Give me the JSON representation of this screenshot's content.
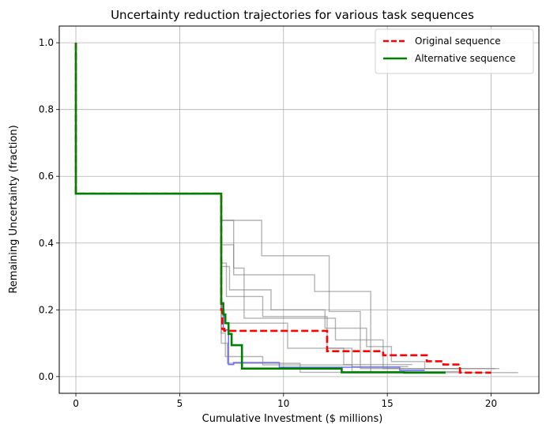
{
  "chart_data": {
    "type": "line",
    "title": "Uncertainty reduction trajectories for various task sequences",
    "xlabel": "Cumulative Investment ($ millions)",
    "ylabel": "Remaining Uncertainty (fraction)",
    "xlim": [
      -0.8,
      22.3
    ],
    "ylim": [
      -0.05,
      1.05
    ],
    "x_ticks": [
      0,
      5,
      10,
      15,
      20
    ],
    "y_ticks": [
      0.0,
      0.2,
      0.4,
      0.6,
      0.8,
      1.0
    ],
    "x_tick_labels": [
      "0",
      "5",
      "10",
      "15",
      "20"
    ],
    "y_tick_labels": [
      "0.0",
      "0.2",
      "0.4",
      "0.6",
      "0.8",
      "1.0"
    ],
    "grid": true,
    "legend_position": "top-right",
    "colors": {
      "highlight": "#ff0000",
      "alternative": "#008000",
      "blue": "#0000ff",
      "background": "#808080"
    },
    "series": [
      {
        "name": "Original sequence",
        "legend": true,
        "color": "#ff0000",
        "style": "dashed",
        "width": 2.6,
        "opacity": 1,
        "x": [
          0,
          0,
          7.0,
          7.0,
          7.05,
          7.05,
          7.15,
          7.15,
          12.1,
          12.1,
          14.8,
          14.8,
          16.9,
          16.9,
          17.7,
          17.7,
          18.5,
          18.5,
          20.0
        ],
        "y": [
          1.0,
          0.548,
          0.548,
          0.2,
          0.2,
          0.143,
          0.143,
          0.137,
          0.137,
          0.076,
          0.076,
          0.064,
          0.064,
          0.046,
          0.046,
          0.036,
          0.036,
          0.012,
          0.012
        ]
      },
      {
        "name": "Alternative sequence",
        "legend": true,
        "color": "#008000",
        "style": "solid",
        "width": 2.6,
        "opacity": 1,
        "x": [
          0,
          0,
          7.0,
          7.0,
          7.1,
          7.1,
          7.2,
          7.2,
          7.35,
          7.35,
          7.5,
          7.5,
          8.0,
          8.0,
          12.8,
          12.8,
          15.8,
          15.8,
          17.8
        ],
        "y": [
          1.0,
          0.548,
          0.548,
          0.22,
          0.22,
          0.186,
          0.186,
          0.16,
          0.16,
          0.128,
          0.128,
          0.094,
          0.094,
          0.024,
          0.024,
          0.013,
          0.013,
          0.012,
          0.012
        ]
      },
      {
        "name": "",
        "legend": false,
        "color": "#0000ff",
        "style": "solid",
        "width": 1.6,
        "opacity": 0.55,
        "x": [
          7.0,
          7.0,
          7.1,
          7.1,
          7.35,
          7.35,
          7.6,
          7.6,
          9.8,
          9.8,
          15.6,
          15.6,
          16.8
        ],
        "y": [
          0.548,
          0.2,
          0.2,
          0.14,
          0.14,
          0.036,
          0.036,
          0.042,
          0.042,
          0.028,
          0.028,
          0.019,
          0.019
        ]
      },
      {
        "name": "",
        "legend": false,
        "color": "#808080",
        "style": "solid",
        "width": 1.4,
        "opacity": 0.6,
        "x": [
          7.0,
          7.0,
          8.95,
          8.95,
          12.2,
          12.2,
          13.7,
          13.7,
          20.4
        ],
        "y": [
          0.548,
          0.468,
          0.468,
          0.362,
          0.362,
          0.195,
          0.195,
          0.024,
          0.024
        ]
      },
      {
        "name": "",
        "legend": false,
        "color": "#808080",
        "style": "solid",
        "width": 1.4,
        "opacity": 0.6,
        "x": [
          7.0,
          7.0,
          7.6,
          7.6,
          11.5,
          11.5,
          14.2,
          14.2,
          21.3
        ],
        "y": [
          0.548,
          0.468,
          0.468,
          0.305,
          0.305,
          0.255,
          0.255,
          0.012,
          0.012
        ]
      },
      {
        "name": "",
        "legend": false,
        "color": "#808080",
        "style": "solid",
        "width": 1.4,
        "opacity": 0.6,
        "x": [
          7.0,
          7.0,
          7.6,
          7.6,
          8.1,
          8.1,
          12.5,
          12.5,
          14.8,
          14.8,
          20.2
        ],
        "y": [
          0.548,
          0.395,
          0.395,
          0.325,
          0.325,
          0.175,
          0.175,
          0.11,
          0.11,
          0.024,
          0.024
        ]
      },
      {
        "name": "",
        "legend": false,
        "color": "#808080",
        "style": "solid",
        "width": 1.4,
        "opacity": 0.6,
        "x": [
          7.0,
          7.0,
          7.4,
          7.4,
          9.4,
          9.4,
          12.0,
          12.0,
          14.0,
          14.0,
          15.2,
          15.2,
          16.8,
          16.8,
          18.5
        ],
        "y": [
          0.548,
          0.33,
          0.33,
          0.26,
          0.26,
          0.2,
          0.2,
          0.145,
          0.145,
          0.09,
          0.09,
          0.045,
          0.045,
          0.024,
          0.024
        ]
      },
      {
        "name": "",
        "legend": false,
        "color": "#808080",
        "style": "solid",
        "width": 1.4,
        "opacity": 0.6,
        "x": [
          7.0,
          7.0,
          7.25,
          7.25,
          9.0,
          9.0,
          12.1,
          12.1,
          13.3,
          13.3,
          16.0
        ],
        "y": [
          0.548,
          0.34,
          0.34,
          0.24,
          0.24,
          0.18,
          0.18,
          0.085,
          0.085,
          0.03,
          0.03
        ]
      },
      {
        "name": "",
        "legend": false,
        "color": "#808080",
        "style": "solid",
        "width": 1.4,
        "opacity": 0.6,
        "x": [
          7.0,
          7.0,
          7.15,
          7.15,
          10.2,
          10.2,
          12.9,
          12.9,
          16.2
        ],
        "y": [
          0.548,
          0.2,
          0.2,
          0.16,
          0.16,
          0.085,
          0.085,
          0.036,
          0.036
        ]
      },
      {
        "name": "",
        "legend": false,
        "color": "#808080",
        "style": "solid",
        "width": 1.4,
        "opacity": 0.6,
        "x": [
          7.0,
          7.0,
          7.3,
          7.3,
          10.8,
          10.8,
          16.1
        ],
        "y": [
          0.548,
          0.1,
          0.1,
          0.04,
          0.04,
          0.013,
          0.013
        ]
      },
      {
        "name": "",
        "legend": false,
        "color": "#808080",
        "style": "solid",
        "width": 1.4,
        "opacity": 0.6,
        "x": [
          7.0,
          7.0,
          7.2,
          7.2,
          9.0,
          9.0,
          13.3,
          13.3,
          18.6
        ],
        "y": [
          0.548,
          0.13,
          0.13,
          0.06,
          0.06,
          0.035,
          0.035,
          0.015,
          0.015
        ]
      }
    ]
  }
}
